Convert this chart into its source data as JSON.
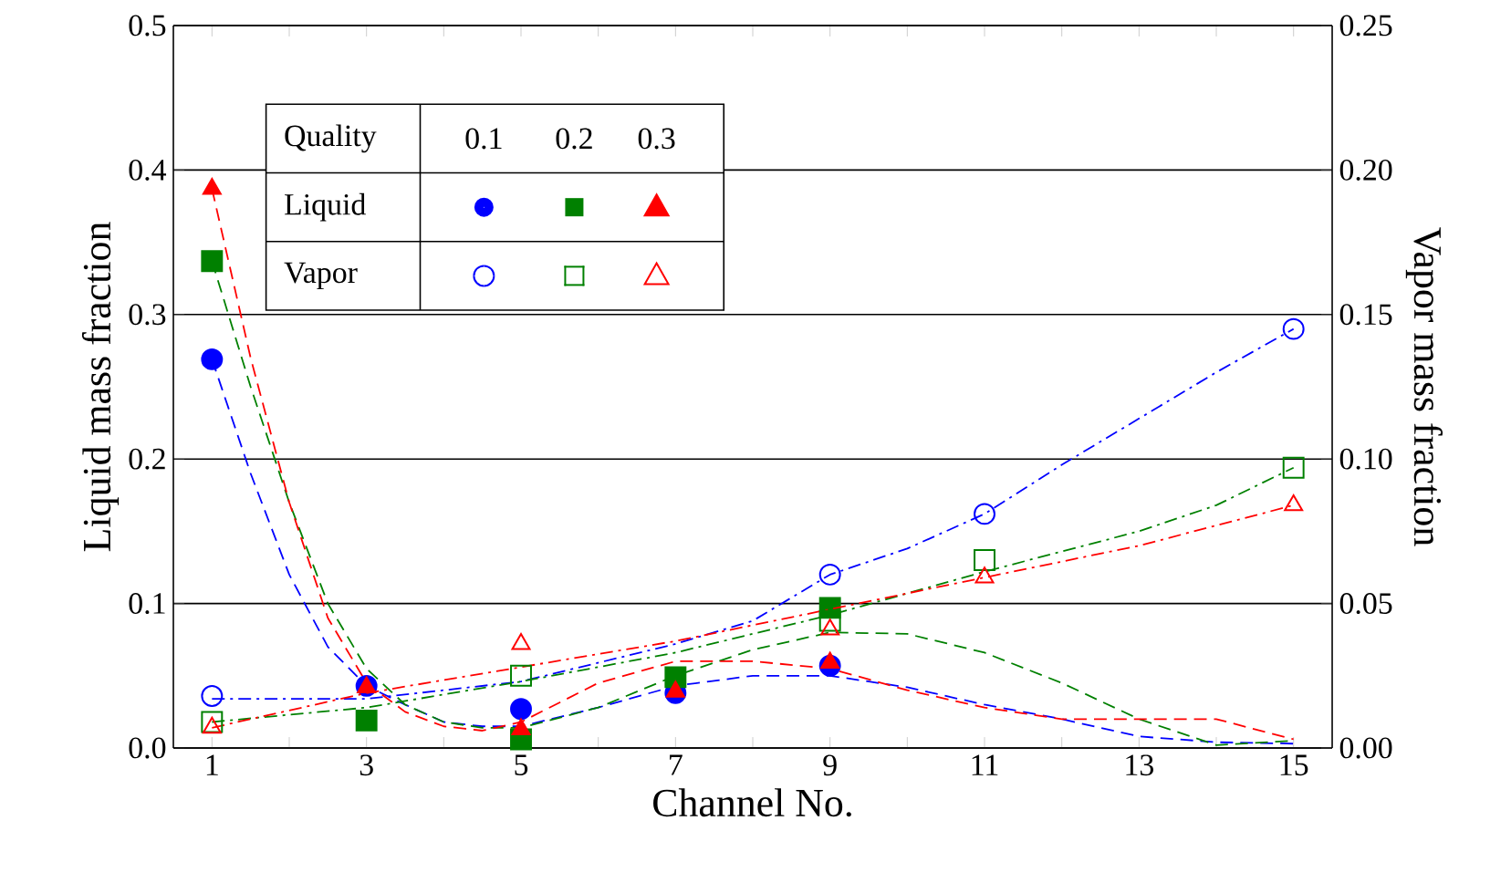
{
  "chart_data": {
    "type": "scatter",
    "xlabel": "Channel No.",
    "ylabel": "Liquid mass fraction",
    "y2label": "Vapor mass fraction",
    "xlim": [
      0.5,
      15.5
    ],
    "xticks": [
      1,
      {
        "value": 2,
        "label": null
      },
      3,
      {
        "value": 4,
        "label": null
      },
      5,
      {
        "value": 6,
        "label": null
      },
      7,
      {
        "value": 8,
        "label": null
      },
      9,
      {
        "value": 10,
        "label": null
      },
      11,
      {
        "value": 12,
        "label": null
      },
      13,
      {
        "value": 14,
        "label": null
      },
      15
    ],
    "ylim": [
      0,
      0.5
    ],
    "yticks": [
      {
        "value": 0,
        "label": "0.0"
      },
      0.1,
      0.2,
      0.3,
      0.4,
      0.5
    ],
    "y2lim": [
      0,
      0.25
    ],
    "y2ticks": [
      {
        "value": 0,
        "label": "0.00"
      },
      0.05,
      {
        "value": 0.1,
        "label": "0.10"
      },
      0.15,
      {
        "value": 0.2,
        "label": "0.20"
      },
      0.25
    ],
    "grid": "y",
    "annotations": [
      "Quality",
      "0.1",
      "0.2",
      "0.3",
      "Liquid",
      "Vapor"
    ],
    "series": [
      {
        "type": "line",
        "color": "#0000ff",
        "axis": "y",
        "line_style": "dashed",
        "x": [
          1,
          1.5,
          2,
          2.5,
          3,
          3.5,
          4,
          4.5,
          5,
          6,
          7,
          8,
          9,
          10,
          11,
          12,
          13,
          14,
          15
        ],
        "values": [
          0.269,
          0.19,
          0.12,
          0.07,
          0.043,
          0.03,
          0.018,
          0.015,
          0.015,
          0.028,
          0.043,
          0.05,
          0.05,
          0.042,
          0.03,
          0.02,
          0.008,
          0.004,
          0.003
        ]
      },
      {
        "type": "line",
        "color": "#008000",
        "axis": "y",
        "line_style": "dashed",
        "x": [
          1,
          1.5,
          2,
          2.5,
          3,
          3.5,
          4,
          4.5,
          5,
          6,
          7,
          8,
          9,
          10,
          11,
          12,
          13,
          14,
          15
        ],
        "values": [
          0.337,
          0.25,
          0.17,
          0.1,
          0.055,
          0.03,
          0.018,
          0.014,
          0.014,
          0.028,
          0.05,
          0.068,
          0.08,
          0.079,
          0.066,
          0.045,
          0.02,
          0.002,
          0.005
        ]
      },
      {
        "type": "line",
        "color": "#ff0000",
        "axis": "y",
        "line_style": "dashed",
        "x": [
          1,
          1.5,
          2,
          2.5,
          3,
          3.5,
          4,
          4.5,
          5,
          6,
          7,
          8,
          9,
          10,
          11,
          12,
          13,
          14,
          15
        ],
        "values": [
          0.387,
          0.27,
          0.17,
          0.09,
          0.045,
          0.025,
          0.015,
          0.012,
          0.018,
          0.045,
          0.06,
          0.06,
          0.055,
          0.04,
          0.028,
          0.02,
          0.02,
          0.02,
          0.006
        ]
      },
      {
        "type": "line",
        "color": "#0000ff",
        "axis": "y2",
        "line_style": "dashdot",
        "x": [
          1,
          3,
          5,
          7,
          8,
          9,
          10,
          11,
          12,
          13,
          14,
          15
        ],
        "values": [
          0.017,
          0.017,
          0.023,
          0.036,
          0.044,
          0.06,
          0.069,
          0.081,
          0.098,
          0.114,
          0.13,
          0.145
        ]
      },
      {
        "type": "line",
        "color": "#008000",
        "axis": "y2",
        "line_style": "dashdot",
        "x": [
          1,
          3,
          5,
          7,
          9,
          11,
          13,
          14,
          15
        ],
        "values": [
          0.009,
          0.014,
          0.023,
          0.033,
          0.046,
          0.061,
          0.075,
          0.084,
          0.097
        ]
      },
      {
        "type": "line",
        "color": "#ff0000",
        "axis": "y2",
        "line_style": "dashdot",
        "x": [
          1,
          3,
          5,
          7,
          9,
          11,
          13,
          15
        ],
        "values": [
          0.007,
          0.019,
          0.028,
          0.037,
          0.048,
          0.059,
          0.07,
          0.084
        ]
      },
      {
        "color": "#0000ff",
        "axis": "y",
        "marker": "circle",
        "x": [
          1,
          3,
          5,
          7,
          9
        ],
        "values": [
          0.269,
          0.043,
          0.027,
          0.038,
          0.057
        ]
      },
      {
        "color": "#008000",
        "axis": "y",
        "marker": "square",
        "x": [
          1,
          3,
          5,
          7,
          9
        ],
        "values": [
          0.337,
          0.019,
          0.006,
          0.049,
          0.097
        ]
      },
      {
        "color": "#ff0000",
        "axis": "y",
        "marker": "triangle",
        "x": [
          1,
          3,
          5,
          7,
          9
        ],
        "values": [
          0.387,
          0.042,
          0.013,
          0.039,
          0.059
        ]
      },
      {
        "color": "#0000ff",
        "axis": "y2",
        "marker": "circle",
        "x": [
          1,
          9,
          11,
          15
        ],
        "values": [
          0.018,
          0.06,
          0.081,
          0.145
        ]
      },
      {
        "color": "#008000",
        "axis": "y2",
        "marker": "square",
        "x": [
          1,
          5,
          9,
          11,
          15
        ],
        "values": [
          0.009,
          0.025,
          0.044,
          0.065,
          0.097
        ]
      },
      {
        "color": "#ff0000",
        "axis": "y2",
        "marker": "triangle",
        "x": [
          1,
          5,
          9,
          11,
          15
        ],
        "values": [
          0.007,
          0.036,
          0.041,
          0.059,
          0.084
        ]
      }
    ]
  }
}
